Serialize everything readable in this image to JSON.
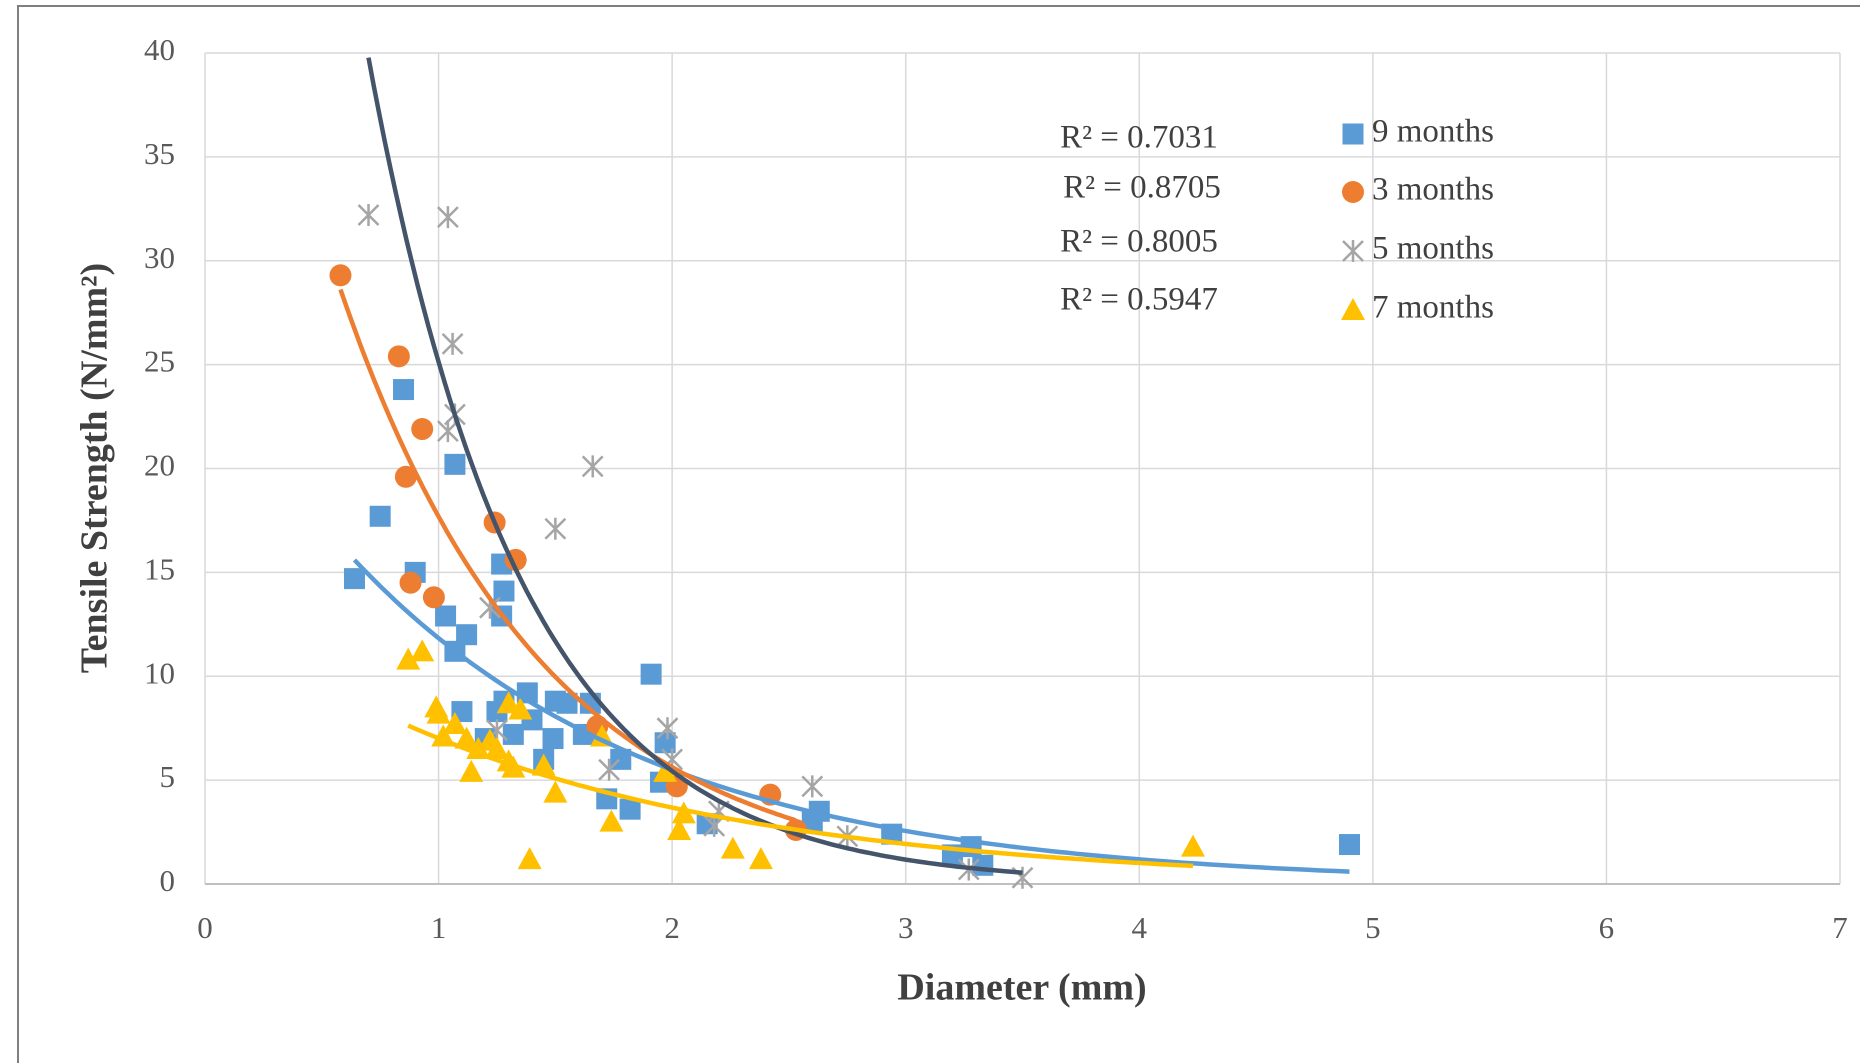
{
  "chart_data": {
    "type": "scatter",
    "x_label": "Diameter (mm)",
    "y_label": "Tensile Strength (N/mm²)",
    "xlim": [
      0,
      7
    ],
    "xticks": [
      0,
      1,
      2,
      3,
      4,
      5,
      6,
      7
    ],
    "ylim": [
      0,
      40
    ],
    "yticks": [
      0,
      5,
      10,
      15,
      20,
      25,
      30,
      35,
      40
    ],
    "grid": true,
    "legend": "upper right",
    "trendline": "exponential",
    "annotations": [
      "R² = 0.7031",
      "R² = 0.8705",
      "R² = 0.8005",
      "R² = 0.5947"
    ],
    "series": [
      {
        "name": "9 months",
        "color": "#5b9bd5",
        "marker": "square",
        "trendline_color": "#5b9bd5",
        "x": [
          0.64,
          0.75,
          0.85,
          0.9,
          1.03,
          1.07,
          1.07,
          1.12,
          1.1,
          1.2,
          1.25,
          1.27,
          1.28,
          1.27,
          1.28,
          1.32,
          1.38,
          1.4,
          1.45,
          1.49,
          1.5,
          1.55,
          1.62,
          1.65,
          1.72,
          1.78,
          1.82,
          1.91,
          1.95,
          1.97,
          2.15,
          2.63,
          2.6,
          2.94,
          3.2,
          3.28,
          3.33,
          4.9
        ],
        "values": [
          14.7,
          17.7,
          23.8,
          15.0,
          12.9,
          11.2,
          20.2,
          12.0,
          8.3,
          7.0,
          8.3,
          15.4,
          14.1,
          12.9,
          8.8,
          7.2,
          9.2,
          7.9,
          6.0,
          7.0,
          8.8,
          8.7,
          7.2,
          8.7,
          4.1,
          6.0,
          3.6,
          10.1,
          4.9,
          6.8,
          2.9,
          3.5,
          3.0,
          2.4,
          1.4,
          1.8,
          0.9,
          1.9
        ]
      },
      {
        "name": "3 months",
        "color": "#ed7d31",
        "marker": "circle",
        "trendline_color": "#ed7d31",
        "x": [
          0.58,
          0.83,
          0.86,
          0.88,
          0.93,
          0.98,
          1.24,
          1.33,
          1.68,
          2.02,
          2.42,
          2.53
        ],
        "values": [
          29.3,
          25.4,
          19.6,
          14.5,
          21.9,
          13.8,
          17.4,
          15.6,
          7.6,
          4.7,
          4.3,
          2.6
        ]
      },
      {
        "name": "5 months",
        "color": "#a5a5a5",
        "marker": "asterisk",
        "trendline_color": "#44546a",
        "x": [
          0.7,
          1.04,
          1.06,
          1.04,
          1.07,
          1.22,
          1.25,
          1.5,
          1.66,
          1.73,
          1.98,
          2.0,
          2.18,
          2.2,
          2.6,
          2.75,
          3.27,
          3.5
        ],
        "values": [
          32.2,
          32.1,
          26.0,
          21.8,
          22.6,
          13.3,
          7.4,
          17.1,
          20.1,
          5.5,
          7.5,
          6.0,
          2.8,
          3.5,
          4.7,
          2.3,
          0.7,
          0.3
        ]
      },
      {
        "name": "7 months",
        "color": "#ffc000",
        "marker": "triangle",
        "trendline_color": "#ffc000",
        "x": [
          0.87,
          0.93,
          0.99,
          1.0,
          1.02,
          1.07,
          1.12,
          1.14,
          1.17,
          1.22,
          1.25,
          1.3,
          1.3,
          1.32,
          1.35,
          1.39,
          1.45,
          1.5,
          1.7,
          1.74,
          1.97,
          2.03,
          2.05,
          2.26,
          2.38,
          4.23
        ],
        "values": [
          10.8,
          11.2,
          8.5,
          8.2,
          7.1,
          7.7,
          7.0,
          5.4,
          6.5,
          6.9,
          6.5,
          5.9,
          8.7,
          5.6,
          8.4,
          1.2,
          5.7,
          4.4,
          7.1,
          3.0,
          5.4,
          2.6,
          3.4,
          1.7,
          1.2,
          1.8
        ]
      }
    ]
  }
}
